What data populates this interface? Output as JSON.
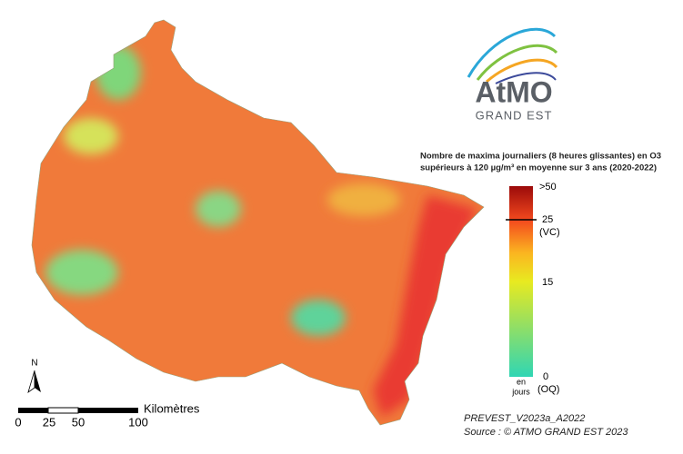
{
  "logo": {
    "name": "AtMO",
    "region": "GRAND EST"
  },
  "legend": {
    "title": [
      "Nombre de maxima journaliers (8 heures glissantes) en O3",
      "supérieurs à 120 µg/m³ en moyenne sur 3 ans (2020-2022)"
    ],
    "ticks": [
      {
        "label": ">50"
      },
      {
        "label": "25",
        "note": "(VC)"
      },
      {
        "label": "15"
      },
      {
        "label": "0",
        "note": "(OQ)"
      }
    ],
    "unit": [
      "en",
      "jours"
    ]
  },
  "north": "N",
  "scale": {
    "title": "Kilomètres",
    "labels": [
      "0",
      "25",
      "50",
      "100"
    ]
  },
  "footer": [
    "PREVEST_V2023a_A2022",
    "Source : © ATMO GRAND EST 2023"
  ]
}
